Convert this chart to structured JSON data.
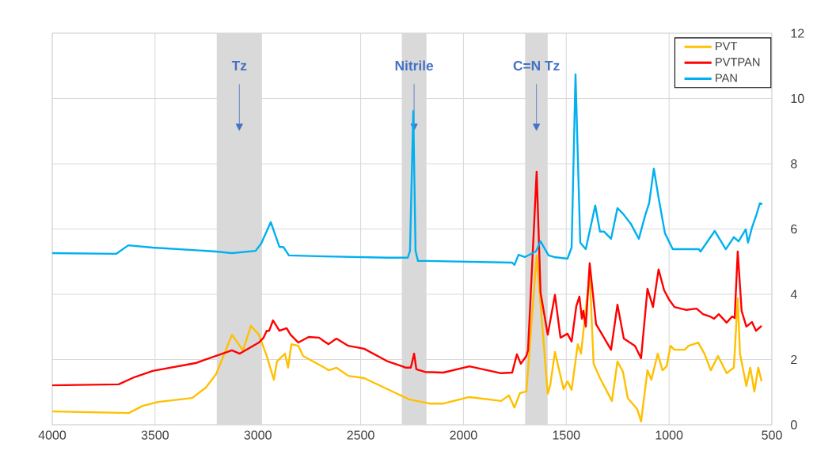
{
  "chart_data": {
    "type": "line",
    "xlim": [
      4000,
      500
    ],
    "xticks": [
      4000,
      3500,
      3000,
      2500,
      2000,
      1500,
      1000,
      500
    ],
    "ylim": [
      0,
      12
    ],
    "yticks": [
      0,
      2,
      4,
      6,
      8,
      10,
      12
    ],
    "grid": true,
    "legend": "top right",
    "bands": [
      {
        "axis": "x",
        "from": 3200,
        "to": 2980,
        "label": "Tz",
        "color": "#d9d9d9"
      },
      {
        "axis": "x",
        "from": 2300,
        "to": 2180,
        "label": "Nitrile",
        "color": "#d9d9d9"
      },
      {
        "axis": "x",
        "from": 1700,
        "to": 1590,
        "label": "C=N Tz",
        "color": "#d9d9d9"
      }
    ],
    "series": [
      {
        "name": "PVT",
        "color": "#ffc000",
        "x": [
          4000,
          3627,
          3561,
          3484,
          3319,
          3253,
          3203,
          3126,
          3072,
          3034,
          2995,
          2957,
          2922,
          2907,
          2868,
          2853,
          2837,
          2803,
          2780,
          2676,
          2656,
          2618,
          2560,
          2483,
          2329,
          2264,
          2164,
          2098,
          1971,
          1817,
          1779,
          1752,
          1725,
          1694,
          1644,
          1590,
          1578,
          1555,
          1513,
          1494,
          1474,
          1444,
          1428,
          1405,
          1386,
          1367,
          1336,
          1278,
          1251,
          1224,
          1201,
          1155,
          1136,
          1105,
          1086,
          1055,
          1032,
          1012,
          993,
          974,
          924,
          905,
          858,
          828,
          797,
          762,
          720,
          685,
          666,
          655,
          624,
          605,
          585,
          566,
          550
        ],
        "values": [
          0.41,
          0.36,
          0.58,
          0.7,
          0.82,
          1.14,
          1.55,
          2.76,
          2.28,
          3.03,
          2.76,
          2.11,
          1.38,
          1.94,
          2.18,
          1.75,
          2.47,
          2.42,
          2.11,
          1.75,
          1.67,
          1.75,
          1.5,
          1.43,
          0.97,
          0.78,
          0.65,
          0.65,
          0.85,
          0.73,
          0.9,
          0.53,
          0.97,
          1.02,
          5.19,
          0.95,
          1.21,
          2.23,
          1.09,
          1.33,
          1.07,
          2.47,
          2.18,
          3.56,
          4.61,
          1.87,
          1.43,
          0.73,
          1.94,
          1.62,
          0.82,
          0.48,
          0.1,
          1.67,
          1.38,
          2.18,
          1.67,
          1.79,
          2.42,
          2.3,
          2.3,
          2.42,
          2.52,
          2.18,
          1.67,
          2.11,
          1.58,
          1.75,
          3.88,
          2.18,
          1.19,
          1.75,
          1.02,
          1.75,
          1.33
        ]
      },
      {
        "name": "PVTPAN",
        "color": "#ff0000",
        "x": [
          4000,
          3677,
          3600,
          3511,
          3303,
          3203,
          3126,
          3088,
          2995,
          2972,
          2957,
          2945,
          2926,
          2895,
          2860,
          2841,
          2803,
          2753,
          2702,
          2676,
          2656,
          2618,
          2560,
          2483,
          2368,
          2279,
          2256,
          2240,
          2229,
          2187,
          2098,
          1971,
          1817,
          1763,
          1740,
          1721,
          1694,
          1686,
          1644,
          1625,
          1590,
          1555,
          1528,
          1494,
          1474,
          1451,
          1436,
          1424,
          1417,
          1405,
          1386,
          1355,
          1282,
          1251,
          1220,
          1166,
          1136,
          1105,
          1078,
          1051,
          1024,
          1001,
          974,
          916,
          866,
          835,
          801,
          781,
          758,
          720,
          693,
          681,
          666,
          647,
          624,
          597,
          577,
          550
        ],
        "values": [
          1.21,
          1.24,
          1.46,
          1.65,
          1.89,
          2.11,
          2.28,
          2.18,
          2.52,
          2.67,
          2.88,
          2.88,
          3.2,
          2.88,
          2.96,
          2.76,
          2.52,
          2.69,
          2.67,
          2.55,
          2.47,
          2.64,
          2.42,
          2.33,
          1.94,
          1.75,
          1.75,
          2.18,
          1.7,
          1.62,
          1.6,
          1.79,
          1.58,
          1.6,
          2.16,
          1.87,
          2.11,
          2.28,
          7.76,
          4.05,
          2.76,
          3.98,
          2.67,
          2.79,
          2.55,
          3.64,
          3.93,
          3.25,
          3.49,
          3.01,
          4.95,
          3.08,
          2.3,
          3.68,
          2.64,
          2.42,
          2.04,
          4.17,
          3.61,
          4.76,
          4.12,
          3.85,
          3.61,
          3.52,
          3.56,
          3.39,
          3.32,
          3.25,
          3.39,
          3.13,
          3.32,
          3.27,
          5.31,
          3.49,
          3.01,
          3.15,
          2.88,
          3.03
        ]
      },
      {
        "name": "PAN",
        "color": "#00b0f0",
        "x": [
          4000,
          3688,
          3630,
          3511,
          3203,
          3126,
          3011,
          2984,
          2937,
          2895,
          2876,
          2849,
          2676,
          2368,
          2271,
          2260,
          2244,
          2233,
          2221,
          2175,
          1763,
          1752,
          1732,
          1702,
          1648,
          1625,
          1586,
          1559,
          1494,
          1474,
          1455,
          1432,
          1405,
          1359,
          1336,
          1316,
          1282,
          1251,
          1224,
          1186,
          1147,
          1116,
          1097,
          1074,
          1051,
          1020,
          982,
          855,
          847,
          778,
          724,
          685,
          662,
          627,
          616,
          597,
          577,
          558,
          547
        ],
        "values": [
          5.26,
          5.24,
          5.5,
          5.43,
          5.31,
          5.26,
          5.33,
          5.55,
          6.21,
          5.45,
          5.45,
          5.19,
          5.16,
          5.12,
          5.12,
          5.33,
          9.62,
          5.33,
          5.02,
          5.02,
          4.97,
          4.9,
          5.21,
          5.14,
          5.31,
          5.62,
          5.19,
          5.14,
          5.09,
          5.43,
          10.74,
          5.58,
          5.38,
          6.72,
          5.92,
          5.92,
          5.7,
          6.64,
          6.47,
          6.16,
          5.7,
          6.42,
          6.79,
          7.85,
          6.96,
          5.87,
          5.38,
          5.38,
          5.31,
          5.94,
          5.38,
          5.75,
          5.62,
          5.99,
          5.58,
          6.04,
          6.4,
          6.79,
          6.76
        ]
      }
    ]
  }
}
